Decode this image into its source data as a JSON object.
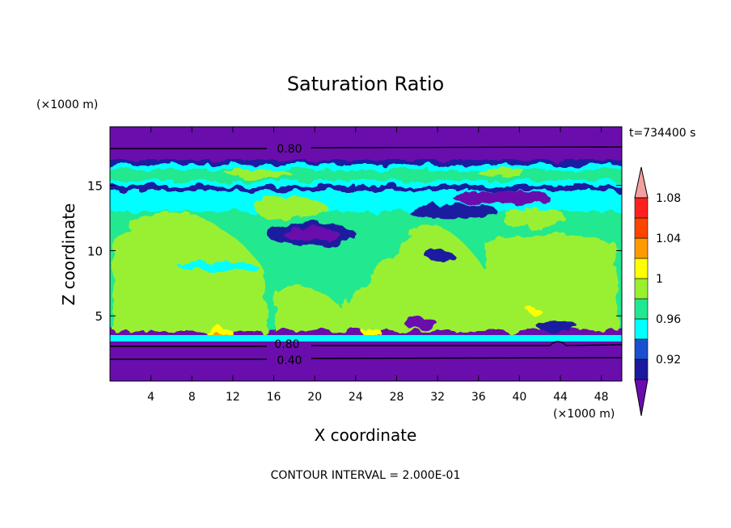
{
  "chart_data": {
    "type": "heatmap",
    "title": "Saturation Ratio",
    "xlabel": "X coordinate",
    "ylabel": "Z coordinate",
    "x_unit": "(×1000 m)",
    "y_unit": "(×1000 m)",
    "time_label": "t=734400 s",
    "footer": "CONTOUR INTERVAL = 2.000E-01",
    "xlim": [
      0,
      50
    ],
    "ylim": [
      0,
      19.5
    ],
    "x_ticks": [
      4,
      8,
      12,
      16,
      20,
      24,
      28,
      32,
      36,
      40,
      44,
      48
    ],
    "y_ticks": [
      5,
      10,
      15
    ],
    "colorbar": {
      "levels": [
        0.92,
        0.96,
        1,
        1.04,
        1.08
      ],
      "colors": [
        "#6a0dad",
        "#1a1aa0",
        "#1a50d0",
        "#00ffff",
        "#20e890",
        "#99f030",
        "#ffff00",
        "#ff9900",
        "#ff4400",
        "#ff2020",
        "#f4a0a0"
      ]
    },
    "contour_labels": [
      {
        "text": "0.80",
        "x": 17.5,
        "z": 18.2
      },
      {
        "text": "0.80",
        "x": 17.0,
        "z": 2.9
      },
      {
        "text": "0.40",
        "x": 17.5,
        "z": 1.6
      }
    ]
  }
}
